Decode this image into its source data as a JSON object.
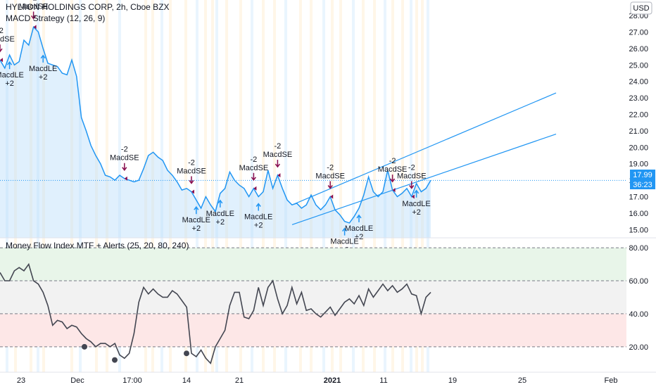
{
  "header": {
    "symbol_line": "HYLIION HOLDINGS CORP, 2h, Cboe BZX",
    "strategy": "MACD Strategy (12, 26, 9)",
    "indicator": "Money Flow Index MTF + Alerts (25, 20, 80, 240)"
  },
  "currency_badge": "USD",
  "price_tag": {
    "price": "17.99",
    "countdown": "36:23"
  },
  "colors": {
    "price_line": "#2196f3",
    "mfi_line": "#434651",
    "long_arrow": "#2196f3",
    "short_arrow": "#880e4f",
    "overbought_band": "#e8f5e9",
    "oversold_band": "#fde7e7",
    "price_fill": "#bbdefb"
  },
  "chart_data": [
    {
      "type": "line",
      "title": "HYLIION HOLDINGS CORP, 2h, Cboe BZX",
      "x_ticks": [
        "23",
        "Dec",
        "17:00",
        "14",
        "21",
        "2021",
        "11",
        "19",
        "25",
        "Feb"
      ],
      "y_ticks": [
        "15.00",
        "16.00",
        "17.00",
        "18.00",
        "19.00",
        "20.00",
        "21.00",
        "22.00",
        "23.00",
        "24.00",
        "25.00",
        "26.00",
        "27.00",
        "28.00"
      ],
      "ylim": [
        14.5,
        28.6
      ],
      "series": [
        {
          "y": [
            25.3,
            24.8,
            25.6,
            25.0,
            25.2,
            26.5,
            26.2,
            27.3,
            27.0,
            26.0,
            25.1,
            25.0,
            24.9,
            24.5,
            24.4,
            25.3,
            24.3,
            21.8,
            21.0,
            20.1,
            19.5,
            19.0,
            18.3,
            18.2,
            18.0,
            18.3,
            18.1,
            18.0,
            17.9,
            18.0,
            18.7,
            19.5,
            19.7,
            19.4,
            19.2,
            18.6,
            18.3,
            17.9,
            17.4,
            17.5,
            17.3,
            16.8,
            16.3,
            17.0,
            16.5,
            16.1,
            17.2,
            17.5,
            18.5,
            18.0,
            17.7,
            17.5,
            17.0,
            17.5,
            17.0,
            17.3,
            18.6,
            17.5,
            18.3,
            17.5,
            16.8,
            16.5,
            16.6,
            16.3,
            16.5,
            17.1,
            16.5,
            16.2,
            16.5,
            17.0,
            16.2,
            15.9,
            15.5,
            15.4,
            15.8,
            16.3,
            17.1,
            18.2,
            17.3,
            17.0,
            17.3,
            18.6,
            17.4,
            17.0,
            17.2,
            17.5,
            17.0,
            17.8,
            17.3,
            17.5,
            17.99
          ]
        }
      ],
      "channel": {
        "upper": {
          "start": 16.5,
          "end": 23.3
        },
        "lower": {
          "start": 15.3,
          "end": 20.8
        }
      },
      "signals": [
        {
          "side": "short",
          "label": "MacdSE",
          "qty": "-2"
        },
        {
          "side": "long",
          "label": "MacdLE",
          "qty": "+2"
        },
        {
          "side": "short",
          "label": "MacdSE",
          "qty": "-2"
        },
        {
          "side": "long",
          "label": "MacdLE",
          "qty": "+2"
        },
        {
          "side": "short",
          "label": "MacdSE",
          "qty": "-2"
        },
        {
          "side": "short",
          "label": "MacdSE",
          "qty": "-2"
        },
        {
          "side": "long",
          "label": "MacdLE",
          "qty": "+2"
        },
        {
          "side": "long",
          "label": "MacdLE",
          "qty": "+2"
        },
        {
          "side": "short",
          "label": "MacdSE",
          "qty": "-2"
        },
        {
          "side": "long",
          "label": "MacdLE",
          "qty": "+2"
        },
        {
          "side": "short",
          "label": "MacdSE",
          "qty": "-2"
        },
        {
          "side": "short",
          "label": "MacdSE",
          "qty": "-2"
        },
        {
          "side": "long",
          "label": "MacdLE",
          "qty": "+2"
        },
        {
          "side": "long",
          "label": "MacdLE",
          "qty": "+2"
        },
        {
          "side": "short",
          "label": "MacdSE",
          "qty": "-2"
        },
        {
          "side": "short",
          "label": "MacdSE",
          "qty": "-2"
        },
        {
          "side": "long",
          "label": "MacdLE",
          "qty": "+2"
        }
      ]
    },
    {
      "type": "line",
      "title": "Money Flow Index MTF + Alerts (25, 20, 80, 240)",
      "y_ticks": [
        "20.00",
        "40.00",
        "60.00",
        "80.00"
      ],
      "ylim": [
        5,
        86
      ],
      "levels": [
        20,
        40,
        60,
        80
      ],
      "series": [
        {
          "y": [
            65,
            60,
            60,
            66,
            68,
            66,
            70,
            60,
            58,
            53,
            45,
            33,
            36,
            35,
            31,
            33,
            32,
            28,
            25,
            23,
            20,
            22,
            22,
            20,
            22,
            15,
            13,
            16,
            28,
            47,
            56,
            52,
            55,
            52,
            50,
            50,
            54,
            52,
            48,
            44,
            16,
            14,
            18,
            13,
            10,
            20,
            25,
            30,
            45,
            53,
            53,
            38,
            37,
            42,
            56,
            45,
            56,
            60,
            49,
            40,
            45,
            56,
            46,
            53,
            42,
            43,
            40,
            38,
            41,
            44,
            39,
            43,
            47,
            49,
            46,
            51,
            45,
            55,
            50,
            54,
            58,
            54,
            57,
            53,
            55,
            58,
            52,
            51,
            40,
            50,
            53
          ]
        }
      ],
      "markers": [
        20,
        12,
        16
      ]
    }
  ]
}
